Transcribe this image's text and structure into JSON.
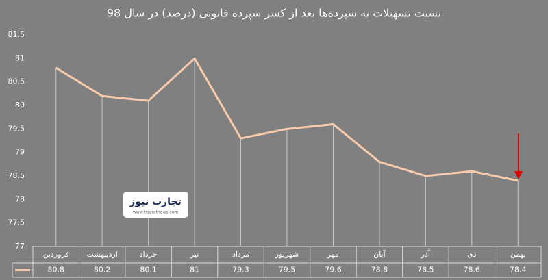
{
  "chart_data": {
    "type": "line",
    "title": "نسبت تسهیلات به سپرده‌ها بعد از کسر سپرده قانونی (درصد) در سال 98",
    "categories": [
      "فروردین",
      "اردیبهشت",
      "خرداد",
      "تیر",
      "مرداد",
      "شهریور",
      "مهر",
      "آبان",
      "آذر",
      "دی",
      "بهمن"
    ],
    "values": [
      80.8,
      80.2,
      80.1,
      81,
      79.3,
      79.5,
      79.6,
      78.8,
      78.5,
      78.6,
      78.4
    ],
    "color": "#f8cbad",
    "ylim": [
      77,
      81.5
    ],
    "yticks": [
      77,
      77.5,
      78,
      78.5,
      79,
      79.5,
      80,
      80.5,
      81,
      81.5
    ],
    "logo_text": "تجارت نیوز",
    "logo_url": "www.tejaratnews.com"
  }
}
